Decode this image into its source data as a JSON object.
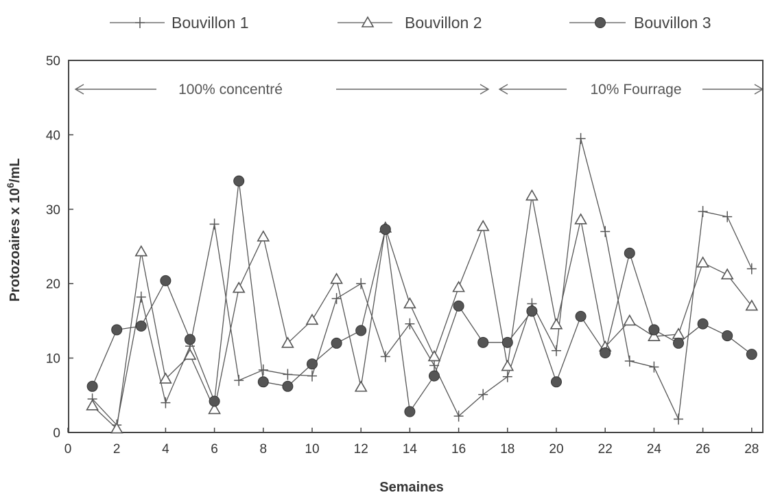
{
  "chart_data": {
    "type": "line",
    "title": "",
    "xlabel": "Semaines",
    "ylabel_main": "Protozoaires x 10",
    "ylabel_sup": "6",
    "ylabel_unit": "/mL",
    "xlim": [
      0,
      28
    ],
    "ylim": [
      0,
      50
    ],
    "xticks": [
      0,
      2,
      4,
      6,
      8,
      10,
      12,
      14,
      16,
      18,
      20,
      22,
      24,
      26,
      28
    ],
    "yticks": [
      0,
      10,
      20,
      30,
      40,
      50
    ],
    "grid": false,
    "legend_position": "top",
    "annotations": [
      {
        "text": "100% concentré",
        "x_start": 0.5,
        "x_end": 17.2
      },
      {
        "text": "10% Fourrage",
        "x_start": 17.5,
        "x_end": 28
      }
    ],
    "series": [
      {
        "name": "Bouvillon 1",
        "marker": "plus",
        "x": [
          1,
          2,
          3,
          4,
          5,
          6,
          7,
          8,
          9,
          10,
          11,
          12,
          13,
          14,
          15,
          16,
          17,
          18,
          19,
          20,
          21,
          22,
          23,
          24,
          25,
          26,
          27,
          28
        ],
        "y": [
          4.5,
          1,
          18.2,
          4,
          11.6,
          28,
          7,
          8.4,
          7.8,
          7.6,
          18,
          20,
          10.2,
          14.6,
          9,
          2.2,
          5.1,
          7.5,
          17.3,
          11,
          39.5,
          27,
          9.6,
          8.8,
          1.8,
          29.7,
          29,
          22
        ]
      },
      {
        "name": "Bouvillon 2",
        "marker": "triangle",
        "x": [
          1,
          2,
          3,
          4,
          5,
          6,
          7,
          8,
          9,
          10,
          11,
          12,
          13,
          14,
          15,
          16,
          17,
          18,
          19,
          20,
          21,
          22,
          23,
          24,
          25,
          26,
          27,
          28
        ],
        "y": [
          3.6,
          0.5,
          24.3,
          7.2,
          10.4,
          3.1,
          19.4,
          26.3,
          12,
          15.1,
          20.6,
          6.1,
          27.5,
          17.3,
          10.2,
          19.5,
          27.7,
          8.9,
          31.8,
          14.5,
          28.6,
          11.5,
          15,
          12.9,
          13.2,
          22.8,
          21.2,
          17
        ]
      },
      {
        "name": "Bouvillon 3",
        "marker": "circle",
        "x": [
          1,
          2,
          3,
          4,
          5,
          6,
          7,
          8,
          9,
          10,
          11,
          12,
          13,
          14,
          15,
          16,
          17,
          18,
          19,
          20,
          21,
          22,
          23,
          24,
          25,
          26,
          27,
          28
        ],
        "y": [
          6.2,
          13.8,
          14.3,
          20.4,
          12.5,
          4.2,
          33.8,
          6.8,
          6.2,
          9.2,
          12,
          13.7,
          27.3,
          2.8,
          7.6,
          17,
          12.1,
          12.1,
          16.3,
          6.8,
          15.6,
          10.7,
          24.1,
          13.8,
          12,
          14.6,
          13,
          10.5
        ]
      }
    ],
    "colors": {
      "line": "#555555",
      "marker_fill": "#555555",
      "frame": "#444444",
      "annotation_arrow": "#666666"
    }
  }
}
